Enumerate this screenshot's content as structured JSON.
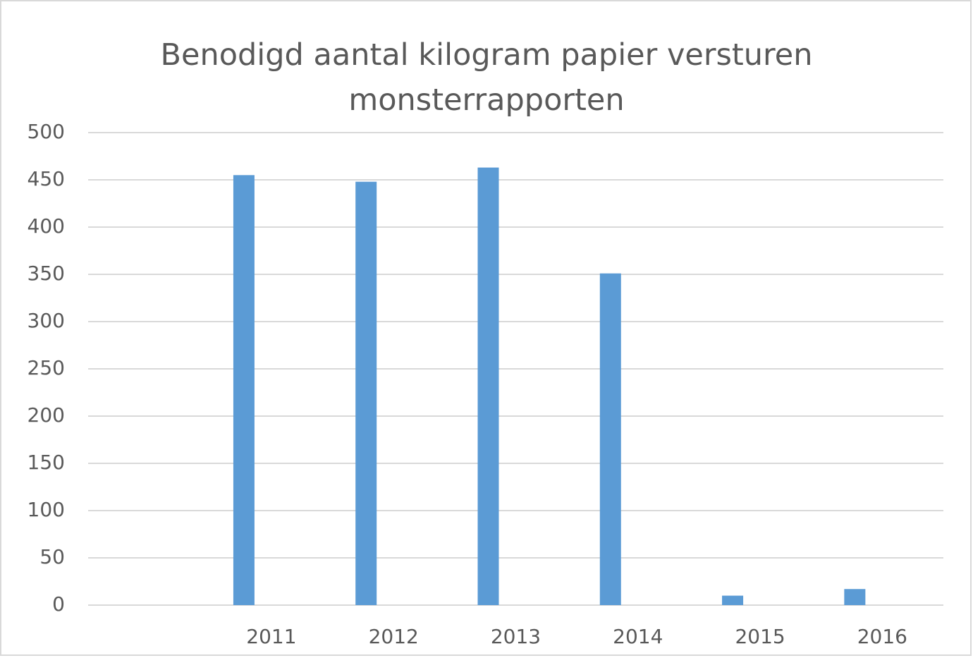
{
  "chart_data": {
    "type": "bar",
    "title": "Benodigd aantal kilogram papier versturen monsterrapporten",
    "categories": [
      null,
      "2011",
      "2012",
      "2013",
      "2014",
      "2015",
      "2016"
    ],
    "values": [
      null,
      455,
      448,
      463,
      351,
      10,
      17
    ],
    "color": "#5b9bd5",
    "ylim": [
      0,
      500
    ],
    "yticks": [
      0,
      50,
      100,
      150,
      200,
      250,
      300,
      350,
      400,
      450,
      500
    ],
    "grid": true
  }
}
